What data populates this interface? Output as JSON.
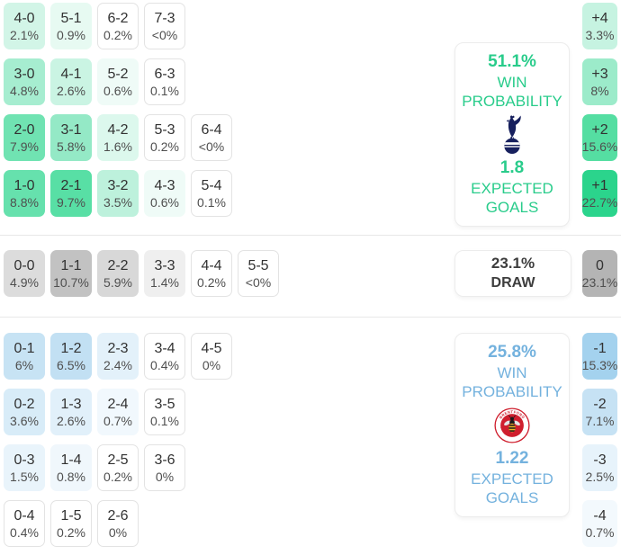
{
  "theme": {
    "home_accent": "#29cc8b",
    "away_accent": "#74b2de",
    "draw_text": "#3d3d3d",
    "home_strongest_cell": "#2bd48c",
    "away_strongest_cell": "#a4d2ee",
    "draw_strongest_cell": "#b4b4b4",
    "divider": "#e8e8e8"
  },
  "sections": {
    "home": {
      "panel": {
        "win_probability": "51.1%",
        "win_probability_label": "WIN PROBABILITY",
        "expected_goals": "1.8",
        "expected_goals_label": "EXPECTED GOALS",
        "accent": "#29cc8b",
        "crest_icon": "tottenham-hotspur-crest"
      },
      "cells": [
        {
          "score": "4-0",
          "pct": "2.1%",
          "row": 1,
          "col": 1,
          "bg": "#d2f5e7"
        },
        {
          "score": "5-1",
          "pct": "0.9%",
          "row": 1,
          "col": 2,
          "bg": "#e7faf2"
        },
        {
          "score": "6-2",
          "pct": "0.2%",
          "row": 1,
          "col": 3,
          "bg": "#ffffff"
        },
        {
          "score": "7-3",
          "pct": "<0%",
          "row": 1,
          "col": 4,
          "bg": "#ffffff"
        },
        {
          "score": "3-0",
          "pct": "4.8%",
          "row": 2,
          "col": 1,
          "bg": "#a6edd0"
        },
        {
          "score": "4-1",
          "pct": "2.6%",
          "row": 2,
          "col": 2,
          "bg": "#caf4e3"
        },
        {
          "score": "5-2",
          "pct": "0.6%",
          "row": 2,
          "col": 3,
          "bg": "#effbf7"
        },
        {
          "score": "6-3",
          "pct": "0.1%",
          "row": 2,
          "col": 4,
          "bg": "#ffffff"
        },
        {
          "score": "2-0",
          "pct": "7.9%",
          "row": 3,
          "col": 1,
          "bg": "#70e3b2"
        },
        {
          "score": "3-1",
          "pct": "5.8%",
          "row": 3,
          "col": 2,
          "bg": "#94e9c6"
        },
        {
          "score": "4-2",
          "pct": "1.6%",
          "row": 3,
          "col": 3,
          "bg": "#dcf8ed"
        },
        {
          "score": "5-3",
          "pct": "0.2%",
          "row": 3,
          "col": 4,
          "bg": "#ffffff"
        },
        {
          "score": "6-4",
          "pct": "<0%",
          "row": 3,
          "col": 5,
          "bg": "#ffffff"
        },
        {
          "score": "1-0",
          "pct": "8.8%",
          "row": 4,
          "col": 1,
          "bg": "#66e1ad"
        },
        {
          "score": "2-1",
          "pct": "9.7%",
          "row": 4,
          "col": 2,
          "bg": "#58dfa5"
        },
        {
          "score": "3-2",
          "pct": "3.5%",
          "row": 4,
          "col": 3,
          "bg": "#bdf1dc"
        },
        {
          "score": "4-3",
          "pct": "0.6%",
          "row": 4,
          "col": 4,
          "bg": "#effbf7"
        },
        {
          "score": "5-4",
          "pct": "0.1%",
          "row": 4,
          "col": 5,
          "bg": "#ffffff"
        }
      ],
      "margins": [
        {
          "label": "+4",
          "pct": "3.3%",
          "row": 1,
          "bg": "#c6f3e1"
        },
        {
          "label": "+3",
          "pct": "8%",
          "row": 2,
          "bg": "#9cebca"
        },
        {
          "label": "+2",
          "pct": "15.6%",
          "row": 3,
          "bg": "#55dea2"
        },
        {
          "label": "+1",
          "pct": "22.7%",
          "row": 4,
          "bg": "#2bd48c"
        }
      ]
    },
    "draw": {
      "panel": {
        "probability": "23.1%",
        "label": "DRAW"
      },
      "cells": [
        {
          "score": "0-0",
          "pct": "4.9%",
          "row": 1,
          "col": 1,
          "bg": "#dcdcdc"
        },
        {
          "score": "1-1",
          "pct": "10.7%",
          "row": 1,
          "col": 2,
          "bg": "#c2c2c2"
        },
        {
          "score": "2-2",
          "pct": "5.9%",
          "row": 1,
          "col": 3,
          "bg": "#d8d8d8"
        },
        {
          "score": "3-3",
          "pct": "1.4%",
          "row": 1,
          "col": 4,
          "bg": "#efefef"
        },
        {
          "score": "4-4",
          "pct": "0.2%",
          "row": 1,
          "col": 5,
          "bg": "#ffffff"
        },
        {
          "score": "5-5",
          "pct": "<0%",
          "row": 1,
          "col": 6,
          "bg": "#ffffff"
        }
      ],
      "margins": [
        {
          "label": "0",
          "pct": "23.1%",
          "row": 1,
          "bg": "#b4b4b4"
        }
      ]
    },
    "away": {
      "panel": {
        "win_probability": "25.8%",
        "win_probability_label": "WIN PROBABILITY",
        "expected_goals": "1.22",
        "expected_goals_label": "EXPECTED GOALS",
        "accent": "#74b2de",
        "crest_icon": "brentford-fc-crest",
        "crest_text_top": "BRENTFORD",
        "crest_text_bottom": "FOOTBALL CLUB"
      },
      "cells": [
        {
          "score": "0-1",
          "pct": "6%",
          "row": 1,
          "col": 1,
          "bg": "#c7e3f4"
        },
        {
          "score": "1-2",
          "pct": "6.5%",
          "row": 1,
          "col": 2,
          "bg": "#c2e0f3"
        },
        {
          "score": "2-3",
          "pct": "2.4%",
          "row": 1,
          "col": 3,
          "bg": "#e3f1fa"
        },
        {
          "score": "3-4",
          "pct": "0.4%",
          "row": 1,
          "col": 4,
          "bg": "#ffffff"
        },
        {
          "score": "4-5",
          "pct": "0%",
          "row": 1,
          "col": 5,
          "bg": "#ffffff"
        },
        {
          "score": "0-2",
          "pct": "3.6%",
          "row": 2,
          "col": 1,
          "bg": "#d8ecf8"
        },
        {
          "score": "1-3",
          "pct": "2.6%",
          "row": 2,
          "col": 2,
          "bg": "#e1f0fa"
        },
        {
          "score": "2-4",
          "pct": "0.7%",
          "row": 2,
          "col": 3,
          "bg": "#f1f8fd"
        },
        {
          "score": "3-5",
          "pct": "0.1%",
          "row": 2,
          "col": 4,
          "bg": "#ffffff"
        },
        {
          "score": "0-3",
          "pct": "1.5%",
          "row": 3,
          "col": 1,
          "bg": "#e9f4fb"
        },
        {
          "score": "1-4",
          "pct": "0.8%",
          "row": 3,
          "col": 2,
          "bg": "#f0f7fc"
        },
        {
          "score": "2-5",
          "pct": "0.2%",
          "row": 3,
          "col": 3,
          "bg": "#ffffff"
        },
        {
          "score": "3-6",
          "pct": "0%",
          "row": 3,
          "col": 4,
          "bg": "#ffffff"
        },
        {
          "score": "0-4",
          "pct": "0.4%",
          "row": 4,
          "col": 1,
          "bg": "#ffffff"
        },
        {
          "score": "1-5",
          "pct": "0.2%",
          "row": 4,
          "col": 2,
          "bg": "#ffffff"
        },
        {
          "score": "2-6",
          "pct": "0%",
          "row": 4,
          "col": 3,
          "bg": "#ffffff"
        }
      ],
      "margins": [
        {
          "label": "-1",
          "pct": "15.3%",
          "row": 1,
          "bg": "#a4d2ee"
        },
        {
          "label": "-2",
          "pct": "7.1%",
          "row": 2,
          "bg": "#c6e2f4"
        },
        {
          "label": "-3",
          "pct": "2.5%",
          "row": 3,
          "bg": "#e7f3fb"
        },
        {
          "label": "-4",
          "pct": "0.7%",
          "row": 4,
          "bg": "#f3f9fd"
        }
      ]
    }
  },
  "chart_data": {
    "type": "heatmap",
    "title": "",
    "description": "Correct-score and goal-margin probability matrix for Tottenham Hotspur vs Brentford",
    "home": {
      "win_probability_pct": 51.1,
      "expected_goals": 1.8,
      "scorelines": [
        [
          "4-0",
          2.1
        ],
        [
          "5-1",
          0.9
        ],
        [
          "6-2",
          0.2
        ],
        [
          "7-3",
          "<0"
        ],
        [
          "3-0",
          4.8
        ],
        [
          "4-1",
          2.6
        ],
        [
          "5-2",
          0.6
        ],
        [
          "6-3",
          0.1
        ],
        [
          "2-0",
          7.9
        ],
        [
          "3-1",
          5.8
        ],
        [
          "4-2",
          1.6
        ],
        [
          "5-3",
          0.2
        ],
        [
          "6-4",
          "<0"
        ],
        [
          "1-0",
          8.8
        ],
        [
          "2-1",
          9.7
        ],
        [
          "3-2",
          3.5
        ],
        [
          "4-3",
          0.6
        ],
        [
          "5-4",
          0.1
        ]
      ],
      "goal_margins": [
        [
          "+4",
          3.3
        ],
        [
          "+3",
          8
        ],
        [
          "+2",
          15.6
        ],
        [
          "+1",
          22.7
        ]
      ]
    },
    "draw": {
      "probability_pct": 23.1,
      "scorelines": [
        [
          "0-0",
          4.9
        ],
        [
          "1-1",
          10.7
        ],
        [
          "2-2",
          5.9
        ],
        [
          "3-3",
          1.4
        ],
        [
          "4-4",
          0.2
        ],
        [
          "5-5",
          "<0"
        ]
      ],
      "goal_margins": [
        [
          "0",
          23.1
        ]
      ]
    },
    "away": {
      "win_probability_pct": 25.8,
      "expected_goals": 1.22,
      "scorelines": [
        [
          "0-1",
          6
        ],
        [
          "1-2",
          6.5
        ],
        [
          "2-3",
          2.4
        ],
        [
          "3-4",
          0.4
        ],
        [
          "4-5",
          0
        ],
        [
          "0-2",
          3.6
        ],
        [
          "1-3",
          2.6
        ],
        [
          "2-4",
          0.7
        ],
        [
          "3-5",
          0.1
        ],
        [
          "0-3",
          1.5
        ],
        [
          "1-4",
          0.8
        ],
        [
          "2-5",
          0.2
        ],
        [
          "3-6",
          0
        ],
        [
          "0-4",
          0.4
        ],
        [
          "1-5",
          0.2
        ],
        [
          "2-6",
          0
        ]
      ],
      "goal_margins": [
        [
          "-1",
          15.3
        ],
        [
          "-2",
          7.1
        ],
        [
          "-3",
          2.5
        ],
        [
          "-4",
          0.7
        ]
      ]
    }
  }
}
